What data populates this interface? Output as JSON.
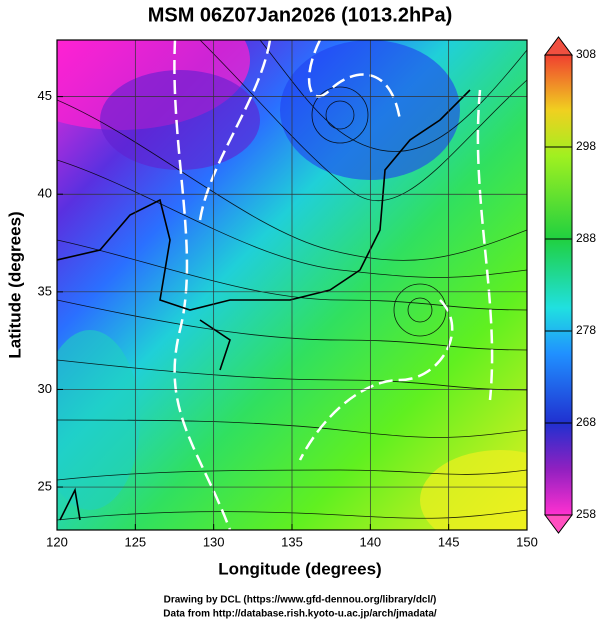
{
  "chart_data": {
    "type": "map",
    "title": "MSM 06Z07Jan2026 (1013.2hPa)",
    "xlabel": "Longitude (degrees)",
    "ylabel": "Latitude  (degrees)",
    "xlim": [
      120,
      150
    ],
    "ylim": [
      22.8,
      47.9
    ],
    "xticks": [
      120,
      125,
      130,
      135,
      140,
      145,
      150
    ],
    "yticks": [
      25,
      30,
      35,
      40,
      45
    ],
    "grid": true,
    "colorbar": {
      "lim": [
        258,
        308
      ],
      "ticks": [
        258,
        268,
        278,
        288,
        298,
        308
      ]
    },
    "credits": [
      "Drawing by DCL (https://www.gfd-dennou.org/library/dcl/)",
      "Data from http://database.rish.kyoto-u.ac.jp/arch/jmadata/"
    ]
  }
}
